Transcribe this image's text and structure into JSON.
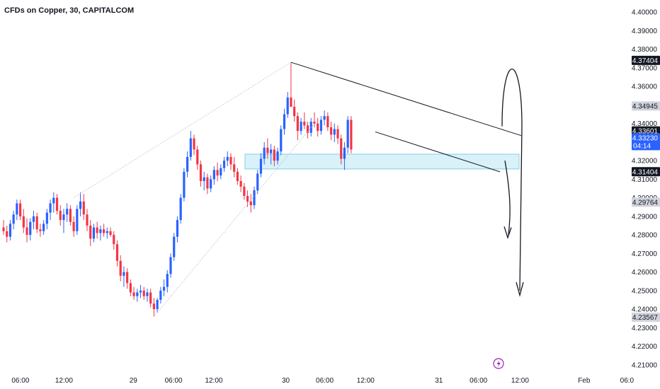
{
  "chart_data": {
    "type": "candlestick",
    "title": "CFDs on Copper, 30, CAPITALCOM",
    "y_axis": {
      "range": [
        4.2065,
        4.4035
      ],
      "ticks": [
        "4.40000",
        "4.39000",
        "4.38000",
        "4.37000",
        "4.36000",
        "4.35000",
        "4.34000",
        "4.33000",
        "4.32000",
        "4.31000",
        "4.30000",
        "4.29000",
        "4.28000",
        "4.27000",
        "4.26000",
        "4.25000",
        "4.24000",
        "4.23000",
        "4.22000",
        "4.21000"
      ]
    },
    "x_axis": {
      "ticks": [
        {
          "label": "06:00",
          "pos": 0.031
        },
        {
          "label": "12:00",
          "pos": 0.097
        },
        {
          "label": "29",
          "pos": 0.202
        },
        {
          "label": "06:00",
          "pos": 0.263
        },
        {
          "label": "12:00",
          "pos": 0.324
        },
        {
          "label": "30",
          "pos": 0.433
        },
        {
          "label": "06:00",
          "pos": 0.492
        },
        {
          "label": "12:00",
          "pos": 0.554
        },
        {
          "label": "31",
          "pos": 0.665
        },
        {
          "label": "06:00",
          "pos": 0.725
        },
        {
          "label": "12:00",
          "pos": 0.788
        },
        {
          "label": "Feb",
          "pos": 0.885
        },
        {
          "label": "06:0",
          "pos": 0.95
        }
      ]
    },
    "price_badges": [
      {
        "label": "4.37404",
        "value": 4.37404,
        "style": "dark"
      },
      {
        "label": "4.34945",
        "value": 4.34945,
        "style": "gray"
      },
      {
        "label": "4.33601",
        "value": 4.33601,
        "style": "dark"
      },
      {
        "label": "4.33230",
        "value": 4.3323,
        "style": "blue",
        "sub": "04:14"
      },
      {
        "label": "4.31404",
        "value": 4.31404,
        "style": "dark"
      },
      {
        "label": "4.29764",
        "value": 4.29764,
        "style": "gray"
      },
      {
        "label": "4.23567",
        "value": 4.23567,
        "style": "gray"
      }
    ],
    "zone": {
      "low": 4.3155,
      "high": 4.3235
    },
    "candles": [
      [
        4.284,
        4.288,
        4.28,
        4.282
      ],
      [
        4.282,
        4.285,
        4.276,
        4.279
      ],
      [
        4.279,
        4.288,
        4.277,
        4.286
      ],
      [
        4.286,
        4.293,
        4.283,
        4.291
      ],
      [
        4.291,
        4.299,
        4.288,
        4.297
      ],
      [
        4.297,
        4.299,
        4.288,
        4.29
      ],
      [
        4.29,
        4.294,
        4.281,
        4.284
      ],
      [
        4.284,
        4.289,
        4.276,
        4.28
      ],
      [
        4.28,
        4.289,
        4.277,
        4.287
      ],
      [
        4.287,
        4.293,
        4.283,
        4.29
      ],
      [
        4.29,
        4.292,
        4.281,
        4.283
      ],
      [
        4.283,
        4.286,
        4.279,
        4.282
      ],
      [
        4.282,
        4.288,
        4.28,
        4.286
      ],
      [
        4.286,
        4.294,
        4.283,
        4.292
      ],
      [
        4.292,
        4.299,
        4.288,
        4.297
      ],
      [
        4.297,
        4.303,
        4.292,
        4.3
      ],
      [
        4.3,
        4.302,
        4.291,
        4.293
      ],
      [
        4.293,
        4.296,
        4.285,
        4.288
      ],
      [
        4.288,
        4.294,
        4.281,
        4.291
      ],
      [
        4.291,
        4.297,
        4.287,
        4.294
      ],
      [
        4.294,
        4.296,
        4.285,
        4.287
      ],
      [
        4.287,
        4.29,
        4.279,
        4.282
      ],
      [
        4.282,
        4.296,
        4.28,
        4.294
      ],
      [
        4.294,
        4.303,
        4.29,
        4.298
      ],
      [
        4.298,
        4.302,
        4.288,
        4.291
      ],
      [
        4.291,
        4.294,
        4.282,
        4.285
      ],
      [
        4.285,
        4.288,
        4.274,
        4.278
      ],
      [
        4.278,
        4.286,
        4.276,
        4.284
      ],
      [
        4.284,
        4.287,
        4.278,
        4.281
      ],
      [
        4.281,
        4.285,
        4.277,
        4.283
      ],
      [
        4.283,
        4.286,
        4.279,
        4.281
      ],
      [
        4.281,
        4.284,
        4.278,
        4.282
      ],
      [
        4.282,
        4.284,
        4.279,
        4.28
      ],
      [
        4.28,
        4.282,
        4.272,
        4.275
      ],
      [
        4.275,
        4.277,
        4.263,
        4.266
      ],
      [
        4.266,
        4.269,
        4.255,
        4.258
      ],
      [
        4.258,
        4.263,
        4.252,
        4.26
      ],
      [
        4.26,
        4.262,
        4.251,
        4.254
      ],
      [
        4.254,
        4.256,
        4.247,
        4.249
      ],
      [
        4.249,
        4.252,
        4.245,
        4.247
      ],
      [
        4.247,
        4.251,
        4.244,
        4.249
      ],
      [
        4.249,
        4.253,
        4.246,
        4.25
      ],
      [
        4.25,
        4.252,
        4.245,
        4.247
      ],
      [
        4.247,
        4.251,
        4.244,
        4.249
      ],
      [
        4.249,
        4.251,
        4.241,
        4.243
      ],
      [
        4.243,
        4.246,
        4.236,
        4.24
      ],
      [
        4.24,
        4.246,
        4.238,
        4.245
      ],
      [
        4.245,
        4.252,
        4.243,
        4.25
      ],
      [
        4.25,
        4.256,
        4.247,
        4.252
      ],
      [
        4.252,
        4.261,
        4.249,
        4.259
      ],
      [
        4.259,
        4.27,
        4.257,
        4.268
      ],
      [
        4.268,
        4.281,
        4.266,
        4.279
      ],
      [
        4.279,
        4.29,
        4.276,
        4.288
      ],
      [
        4.288,
        4.302,
        4.286,
        4.3
      ],
      [
        4.3,
        4.316,
        4.298,
        4.314
      ],
      [
        4.314,
        4.325,
        4.311,
        4.322
      ],
      [
        4.322,
        4.336,
        4.32,
        4.332
      ],
      [
        4.332,
        4.334,
        4.323,
        4.326
      ],
      [
        4.326,
        4.328,
        4.315,
        4.318
      ],
      [
        4.318,
        4.32,
        4.306,
        4.309
      ],
      [
        4.309,
        4.314,
        4.304,
        4.311
      ],
      [
        4.311,
        4.313,
        4.302,
        4.305
      ],
      [
        4.305,
        4.312,
        4.303,
        4.31
      ],
      [
        4.31,
        4.317,
        4.307,
        4.315
      ],
      [
        4.315,
        4.319,
        4.309,
        4.312
      ],
      [
        4.312,
        4.318,
        4.31,
        4.316
      ],
      [
        4.316,
        4.322,
        4.314,
        4.32
      ],
      [
        4.32,
        4.325,
        4.317,
        4.322
      ],
      [
        4.322,
        4.324,
        4.315,
        4.318
      ],
      [
        4.318,
        4.322,
        4.311,
        4.314
      ],
      [
        4.314,
        4.316,
        4.307,
        4.309
      ],
      [
        4.309,
        4.312,
        4.303,
        4.306
      ],
      [
        4.306,
        4.308,
        4.299,
        4.301
      ],
      [
        4.301,
        4.304,
        4.295,
        4.298
      ],
      [
        4.298,
        4.302,
        4.292,
        4.296
      ],
      [
        4.296,
        4.306,
        4.294,
        4.304
      ],
      [
        4.304,
        4.315,
        4.302,
        4.313
      ],
      [
        4.313,
        4.324,
        4.311,
        4.321
      ],
      [
        4.321,
        4.33,
        4.318,
        4.327
      ],
      [
        4.327,
        4.332,
        4.321,
        4.324
      ],
      [
        4.324,
        4.329,
        4.318,
        4.326
      ],
      [
        4.326,
        4.328,
        4.317,
        4.32
      ],
      [
        4.32,
        4.327,
        4.318,
        4.325
      ],
      [
        4.325,
        4.339,
        4.323,
        4.337
      ],
      [
        4.337,
        4.348,
        4.334,
        4.345
      ],
      [
        4.345,
        4.357,
        4.343,
        4.354
      ],
      [
        4.354,
        4.373,
        4.349,
        4.349
      ],
      [
        4.349,
        4.353,
        4.341,
        4.344
      ],
      [
        4.344,
        4.346,
        4.331,
        4.336
      ],
      [
        4.336,
        4.343,
        4.334,
        4.341
      ],
      [
        4.341,
        4.346,
        4.337,
        4.339
      ],
      [
        4.339,
        4.341,
        4.332,
        4.335
      ],
      [
        4.335,
        4.343,
        4.333,
        4.341
      ],
      [
        4.341,
        4.346,
        4.338,
        4.34
      ],
      [
        4.34,
        4.343,
        4.333,
        4.336
      ],
      [
        4.336,
        4.344,
        4.334,
        4.342
      ],
      [
        4.342,
        4.347,
        4.339,
        4.344
      ],
      [
        4.344,
        4.346,
        4.336,
        4.338
      ],
      [
        4.338,
        4.341,
        4.331,
        4.334
      ],
      [
        4.334,
        4.34,
        4.33,
        4.337
      ],
      [
        4.337,
        4.339,
        4.329,
        4.332
      ],
      [
        4.332,
        4.334,
        4.318,
        4.321
      ],
      [
        4.321,
        4.33,
        4.315,
        4.327
      ],
      [
        4.327,
        4.344,
        4.324,
        4.342
      ],
      [
        4.342,
        4.344,
        4.324,
        4.326
      ]
    ]
  }
}
